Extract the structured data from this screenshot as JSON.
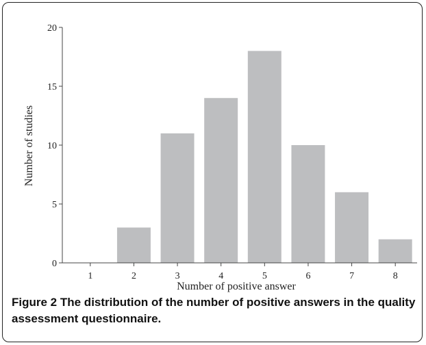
{
  "caption": {
    "label": "Figure 2",
    "text": "The distribution of the number of positive answers in the quality assessment questionnaire."
  },
  "chart_data": {
    "type": "bar",
    "categories": [
      "1",
      "2",
      "3",
      "4",
      "5",
      "6",
      "7",
      "8"
    ],
    "values": [
      0,
      3,
      11,
      14,
      18,
      10,
      6,
      2
    ],
    "title": "",
    "xlabel": "Number of positive answer",
    "ylabel": "Number of studies",
    "ylim": [
      0,
      20
    ],
    "yticks": [
      0,
      5,
      10,
      15,
      20
    ],
    "grid": false,
    "bar_color": "#bdbec0"
  }
}
